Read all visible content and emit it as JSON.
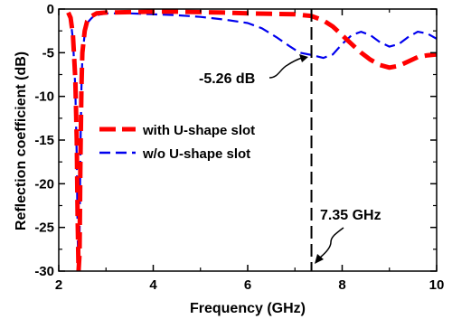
{
  "chart_data": {
    "type": "line",
    "title": "",
    "xlabel": "Frequency (GHz)",
    "ylabel": "Reflection coefficient (dB)",
    "xlim": [
      2,
      10
    ],
    "ylim": [
      -30,
      0
    ],
    "xticks": [
      2,
      4,
      6,
      8,
      10
    ],
    "yticks": [
      0,
      -5,
      -10,
      -15,
      -20,
      -25,
      -30
    ],
    "grid": false,
    "legend": "center-left",
    "series": [
      {
        "name": "with U-shape slot",
        "color": "#ff0000",
        "style": "dashed-thick",
        "x": [
          2.2,
          2.25,
          2.3,
          2.35,
          2.38,
          2.4,
          2.42,
          2.44,
          2.46,
          2.48,
          2.5,
          2.55,
          2.6,
          2.7,
          2.8,
          3.0,
          3.5,
          4.0,
          4.5,
          5.0,
          5.5,
          6.0,
          6.5,
          7.0,
          7.35,
          7.6,
          7.8,
          8.0,
          8.2,
          8.4,
          8.6,
          8.8,
          9.0,
          9.2,
          9.4,
          9.6,
          9.8,
          10.0
        ],
        "y": [
          -0.4,
          -1.0,
          -3.0,
          -8.0,
          -15.0,
          -24.0,
          -30.0,
          -28.0,
          -17.0,
          -9.0,
          -5.0,
          -2.5,
          -1.4,
          -0.8,
          -0.5,
          -0.4,
          -0.35,
          -0.3,
          -0.3,
          -0.35,
          -0.4,
          -0.5,
          -0.55,
          -0.6,
          -0.8,
          -1.3,
          -2.0,
          -3.0,
          -4.0,
          -5.0,
          -5.8,
          -6.4,
          -6.7,
          -6.5,
          -6.0,
          -5.5,
          -5.3,
          -5.2
        ]
      },
      {
        "name": "w/o U-shape slot",
        "color": "#0000ee",
        "style": "dashed",
        "x": [
          2.2,
          2.25,
          2.3,
          2.35,
          2.38,
          2.4,
          2.42,
          2.44,
          2.46,
          2.48,
          2.5,
          2.55,
          2.6,
          2.7,
          2.8,
          3.0,
          3.5,
          4.0,
          4.5,
          5.0,
          5.5,
          6.0,
          6.3,
          6.6,
          6.9,
          7.1,
          7.35,
          7.6,
          7.8,
          8.0,
          8.2,
          8.4,
          8.6,
          8.8,
          9.0,
          9.2,
          9.4,
          9.6,
          9.8,
          10.0
        ],
        "y": [
          -0.5,
          -1.2,
          -3.5,
          -9.0,
          -17.0,
          -26.0,
          -30.0,
          -26.0,
          -16.0,
          -9.0,
          -5.5,
          -2.8,
          -1.6,
          -1.0,
          -0.7,
          -0.5,
          -0.5,
          -0.6,
          -0.7,
          -0.9,
          -1.2,
          -1.6,
          -2.2,
          -3.2,
          -4.3,
          -5.0,
          -5.26,
          -5.6,
          -5.2,
          -4.0,
          -3.0,
          -2.6,
          -3.0,
          -3.8,
          -4.3,
          -4.0,
          -3.2,
          -2.6,
          -2.8,
          -3.4
        ]
      }
    ],
    "annotations": [
      {
        "text": "-5.26 dB"
      },
      {
        "text": "7.35 GHz"
      }
    ]
  }
}
